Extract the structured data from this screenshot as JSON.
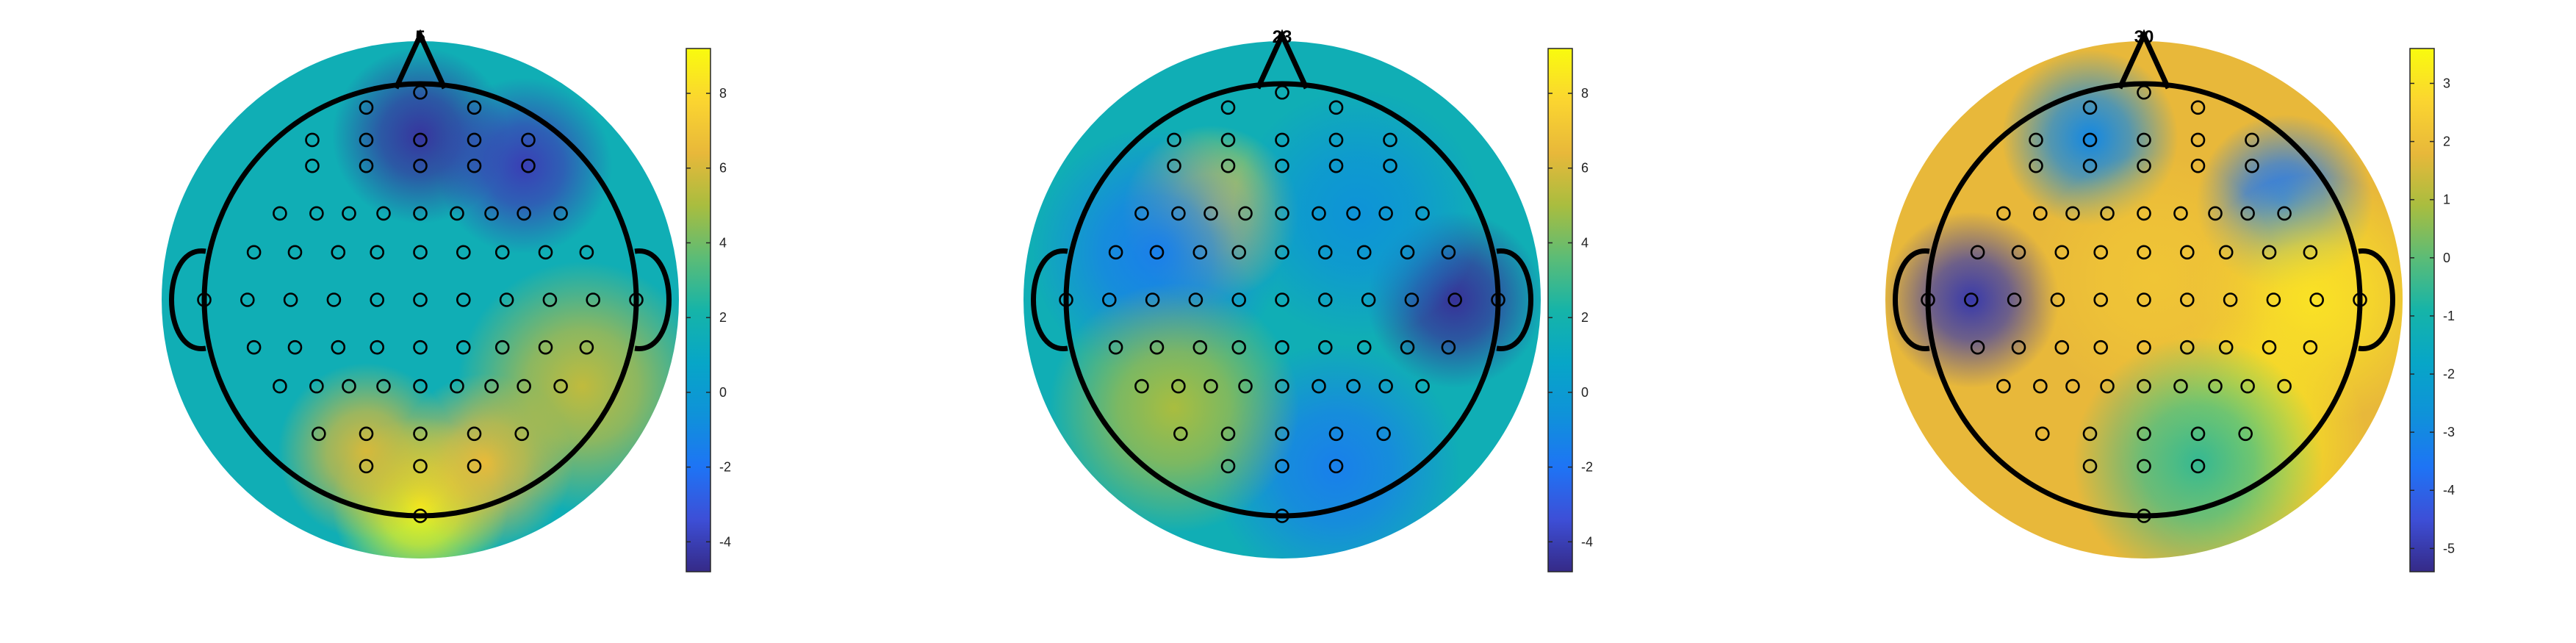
{
  "chart_data": [
    {
      "type": "heatmap",
      "title": "5",
      "colormap": "parula",
      "colorbar": {
        "range": [
          -4.8,
          9.2
        ],
        "ticks": [
          -4,
          -2,
          0,
          2,
          4,
          6,
          8
        ]
      },
      "features": [
        {
          "name": "frontal-minimum-left",
          "x": 0.0,
          "y": 0.76,
          "value": -4.4
        },
        {
          "name": "frontal-minimum-right",
          "x": 0.48,
          "y": 0.62,
          "value": -4.0
        },
        {
          "name": "posterior-maximum",
          "x": 0.0,
          "y": -0.95,
          "value": 9.0
        },
        {
          "name": "occipital-right",
          "x": 0.3,
          "y": -0.75,
          "value": 6.5
        },
        {
          "name": "occipital-left",
          "x": -0.25,
          "y": -0.7,
          "value": 6.0
        },
        {
          "name": "right-temporal",
          "x": 0.75,
          "y": -0.4,
          "value": 5.5
        }
      ]
    },
    {
      "type": "heatmap",
      "title": "23",
      "colormap": "parula",
      "colorbar": {
        "range": [
          -4.8,
          9.2
        ],
        "ticks": [
          -4,
          -2,
          0,
          2,
          4,
          6,
          8
        ]
      },
      "features": [
        {
          "name": "left-frontal-maximum",
          "x": -0.33,
          "y": 0.4,
          "value": 7.5
        },
        {
          "name": "right-temporal-minimum",
          "x": 0.8,
          "y": 0.0,
          "value": -4.5
        },
        {
          "name": "left-central-minimum",
          "x": -0.58,
          "y": 0.22,
          "value": -1.5
        },
        {
          "name": "posterior-minimum",
          "x": 0.25,
          "y": -0.78,
          "value": -1.5
        },
        {
          "name": "right-frontal-minimum",
          "x": 0.35,
          "y": 0.4,
          "value": -0.5
        },
        {
          "name": "left-posterior-maximum",
          "x": -0.5,
          "y": -0.5,
          "value": 5.0
        }
      ]
    },
    {
      "type": "heatmap",
      "title": "30",
      "colormap": "parula",
      "colorbar": {
        "range": [
          -5.4,
          3.6
        ],
        "ticks": [
          -5,
          -4,
          -3,
          -2,
          -1,
          0,
          1,
          2,
          3
        ]
      },
      "features": [
        {
          "name": "left-temporal-minimum",
          "x": -0.8,
          "y": 0.0,
          "value": -5.0
        },
        {
          "name": "right-frontal-minimum",
          "x": 0.65,
          "y": 0.45,
          "value": -3.5
        },
        {
          "name": "frontal-minimum",
          "x": -0.25,
          "y": 0.75,
          "value": -3.0
        },
        {
          "name": "posterior-maximum",
          "x": 0.45,
          "y": -0.65,
          "value": 3.2
        },
        {
          "name": "right-temporal-maximum",
          "x": 0.78,
          "y": 0.0,
          "value": 3.0
        },
        {
          "name": "central-maximum",
          "x": 0.05,
          "y": 0.1,
          "value": 2.2
        },
        {
          "name": "posterior-local-minimum",
          "x": 0.25,
          "y": -0.75,
          "value": -0.5
        }
      ]
    }
  ]
}
